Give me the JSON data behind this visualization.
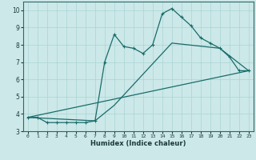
{
  "title": "",
  "xlabel": "Humidex (Indice chaleur)",
  "bg_color": "#cce8e8",
  "plot_bg_color": "#cce8e8",
  "axis_bg_color": "#336666",
  "line_color": "#1a6b6b",
  "grid_color": "#aad4d4",
  "xlim": [
    -0.5,
    23.5
  ],
  "ylim": [
    3,
    10.5
  ],
  "xticks": [
    0,
    1,
    2,
    3,
    4,
    5,
    6,
    7,
    8,
    9,
    10,
    11,
    12,
    13,
    14,
    15,
    16,
    17,
    18,
    19,
    20,
    21,
    22,
    23
  ],
  "yticks": [
    3,
    4,
    5,
    6,
    7,
    8,
    9,
    10
  ],
  "line1_x": [
    0,
    1,
    2,
    3,
    4,
    5,
    6,
    7,
    8,
    9,
    10,
    11,
    12,
    13,
    14,
    15,
    16,
    17,
    18,
    19,
    20,
    21,
    22,
    23
  ],
  "line1_y": [
    3.8,
    3.8,
    3.5,
    3.5,
    3.5,
    3.5,
    3.5,
    3.6,
    7.0,
    8.6,
    7.9,
    7.8,
    7.5,
    8.0,
    9.8,
    10.1,
    9.6,
    9.1,
    8.4,
    8.1,
    7.8,
    7.3,
    6.5,
    6.5
  ],
  "line2_x": [
    0,
    1,
    2,
    3,
    4,
    5,
    6,
    7,
    23
  ],
  "line2_y": [
    3.8,
    3.8,
    3.5,
    3.5,
    3.5,
    3.5,
    3.5,
    3.6,
    6.5
  ],
  "line3_x": [
    0,
    7,
    9,
    15,
    20,
    23
  ],
  "line3_y": [
    3.8,
    3.6,
    4.5,
    8.1,
    7.8,
    6.5
  ],
  "line4_x": [
    0,
    23
  ],
  "line4_y": [
    3.8,
    6.5
  ],
  "xlabel_color": "#1a3a3a",
  "tick_color": "#1a3a3a",
  "spine_color": "#336666",
  "bottom_bar_color": "#336666"
}
